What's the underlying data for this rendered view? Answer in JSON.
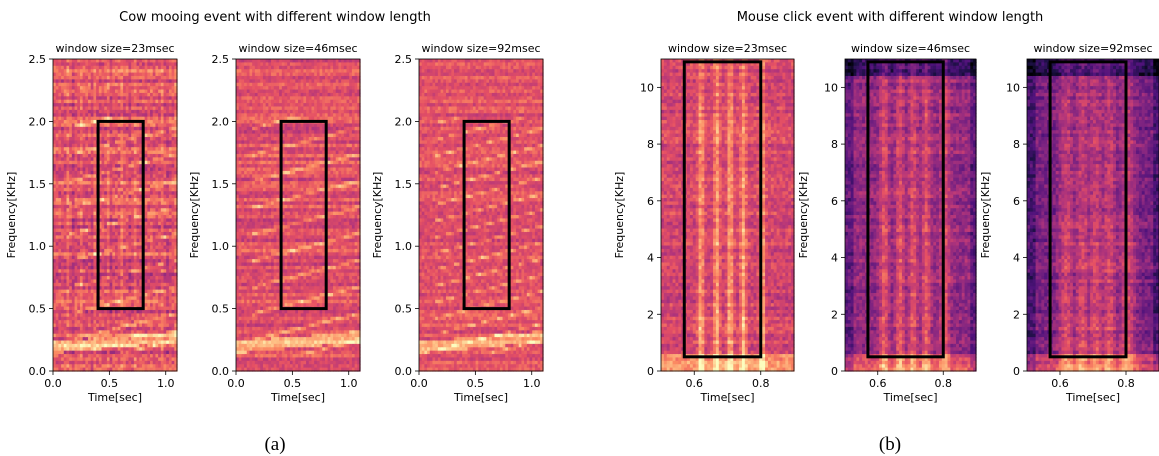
{
  "panels": [
    {
      "caption": "(a)",
      "suptitle": "Cow mooing event with different window length",
      "subplots": [
        {
          "title": "window size=23msec",
          "style": "cow-sharp"
        },
        {
          "title": "window size=46msec",
          "style": "cow-mid"
        },
        {
          "title": "window size=92msec",
          "style": "cow-smooth"
        }
      ]
    },
    {
      "caption": "(b)",
      "suptitle": "Mouse click event with different window length",
      "subplots": [
        {
          "title": "window size=23msec",
          "style": "click-bright"
        },
        {
          "title": "window size=46msec",
          "style": "click-mid"
        },
        {
          "title": "window size=92msec",
          "style": "click-dark"
        }
      ]
    }
  ],
  "chart_data": [
    {
      "type": "heatmap",
      "title": "Cow mooing event with different window length",
      "subtitles": [
        "window size=23msec",
        "window size=46msec",
        "window size=92msec"
      ],
      "xlabel": "Time[sec]",
      "ylabel": "Frequency[KHz]",
      "xlim": [
        0.0,
        1.1
      ],
      "ylim": [
        0.0,
        2.5
      ],
      "xticks": [
        0.0,
        0.5,
        1.0
      ],
      "xtick_labels": [
        "0.0",
        "0.5",
        "1.0"
      ],
      "yticks": [
        0.0,
        0.5,
        1.0,
        1.5,
        2.0,
        2.5
      ],
      "ytick_labels": [
        "0.0",
        "0.5",
        "1.0",
        "1.5",
        "2.0",
        "2.5"
      ],
      "colormap": "magma",
      "highlight_box": {
        "x": [
          0.4,
          0.8
        ],
        "y": [
          0.5,
          2.0
        ]
      }
    },
    {
      "type": "heatmap",
      "title": "Mouse click event with different window length",
      "subtitles": [
        "window size=23msec",
        "window size=46msec",
        "window size=92msec"
      ],
      "xlabel": "Time[sec]",
      "ylabel": "Frequency[KHz]",
      "xlim": [
        0.5,
        0.9
      ],
      "ylim": [
        0.0,
        11.0
      ],
      "xticks": [
        0.6,
        0.8
      ],
      "xtick_labels": [
        "0.6",
        "0.8"
      ],
      "yticks": [
        0,
        2,
        4,
        6,
        8,
        10
      ],
      "ytick_labels": [
        "0",
        "2",
        "4",
        "6",
        "8",
        "10"
      ],
      "colormap": "magma",
      "highlight_box": {
        "x": [
          0.57,
          0.8
        ],
        "y": [
          0.5,
          10.9
        ]
      }
    }
  ]
}
